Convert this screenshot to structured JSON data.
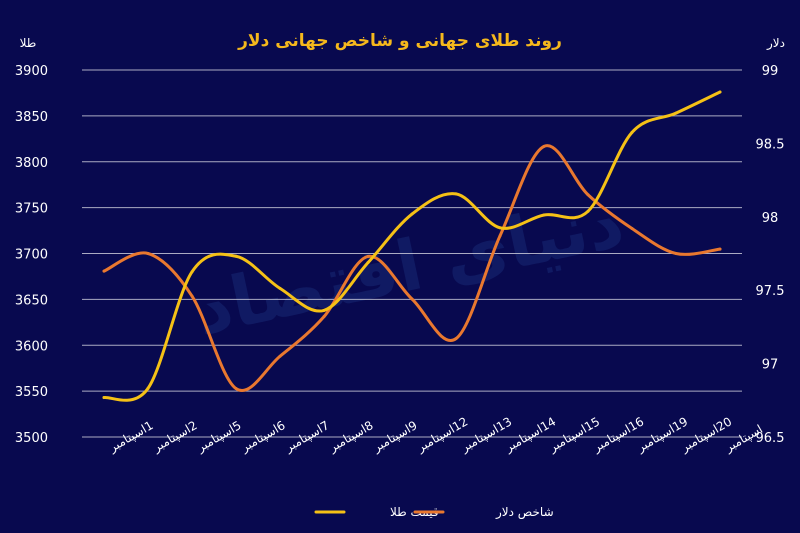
{
  "colors": {
    "background": "#08094f",
    "grid": "#c8c8d8",
    "gold": "#f5c116",
    "dollar": "#e9782f",
    "title": "#f5b81c",
    "watermark": "#1f3a8a"
  },
  "watermark_text": "دنیای اقتصاد",
  "chart_data": {
    "type": "line",
    "title": "روند طلای جهانی و شاخص جهانی دلار",
    "left_axis_label": "طلا",
    "right_axis_label": "دلار",
    "categories": [
      "1اسپتامبر",
      "2اسپتامبر",
      "5اسپتامبر",
      "6اسپتامبر",
      "7اسپتامبر",
      "8اسپتامبر",
      "9اسپتامبر",
      "12اسپتامبر",
      "13اسپتامبر",
      "14اسپتامبر",
      "15اسپتامبر",
      "16اسپتامبر",
      "19اسپتامبر",
      "20اسپتامبر",
      "اسپتامبر"
    ],
    "left_ylim": [
      3500,
      3900
    ],
    "left_ticks": [
      "3500",
      "3550",
      "3600",
      "3650",
      "3700",
      "3750",
      "3800",
      "3850",
      "3900"
    ],
    "right_ylim": [
      96.5,
      99
    ],
    "right_ticks": [
      "96.5",
      "97",
      "97.5",
      "98",
      "98.5",
      "99"
    ],
    "grid": true,
    "legend_position": "bottom-center",
    "series": [
      {
        "name": "قیمت طلا",
        "axis": "left",
        "color": "#f5c116",
        "values": [
          3543,
          3553,
          3680,
          3697,
          3662,
          3638,
          3690,
          3743,
          3765,
          3728,
          3742,
          3746,
          3832,
          3853,
          3876
        ]
      },
      {
        "name": "شاخص دلار",
        "axis": "right",
        "color": "#e9782f",
        "values": [
          97.63,
          97.75,
          97.46,
          96.83,
          97.05,
          97.32,
          97.73,
          97.44,
          97.17,
          97.87,
          98.48,
          98.15,
          97.92,
          97.75,
          97.78
        ]
      }
    ]
  }
}
